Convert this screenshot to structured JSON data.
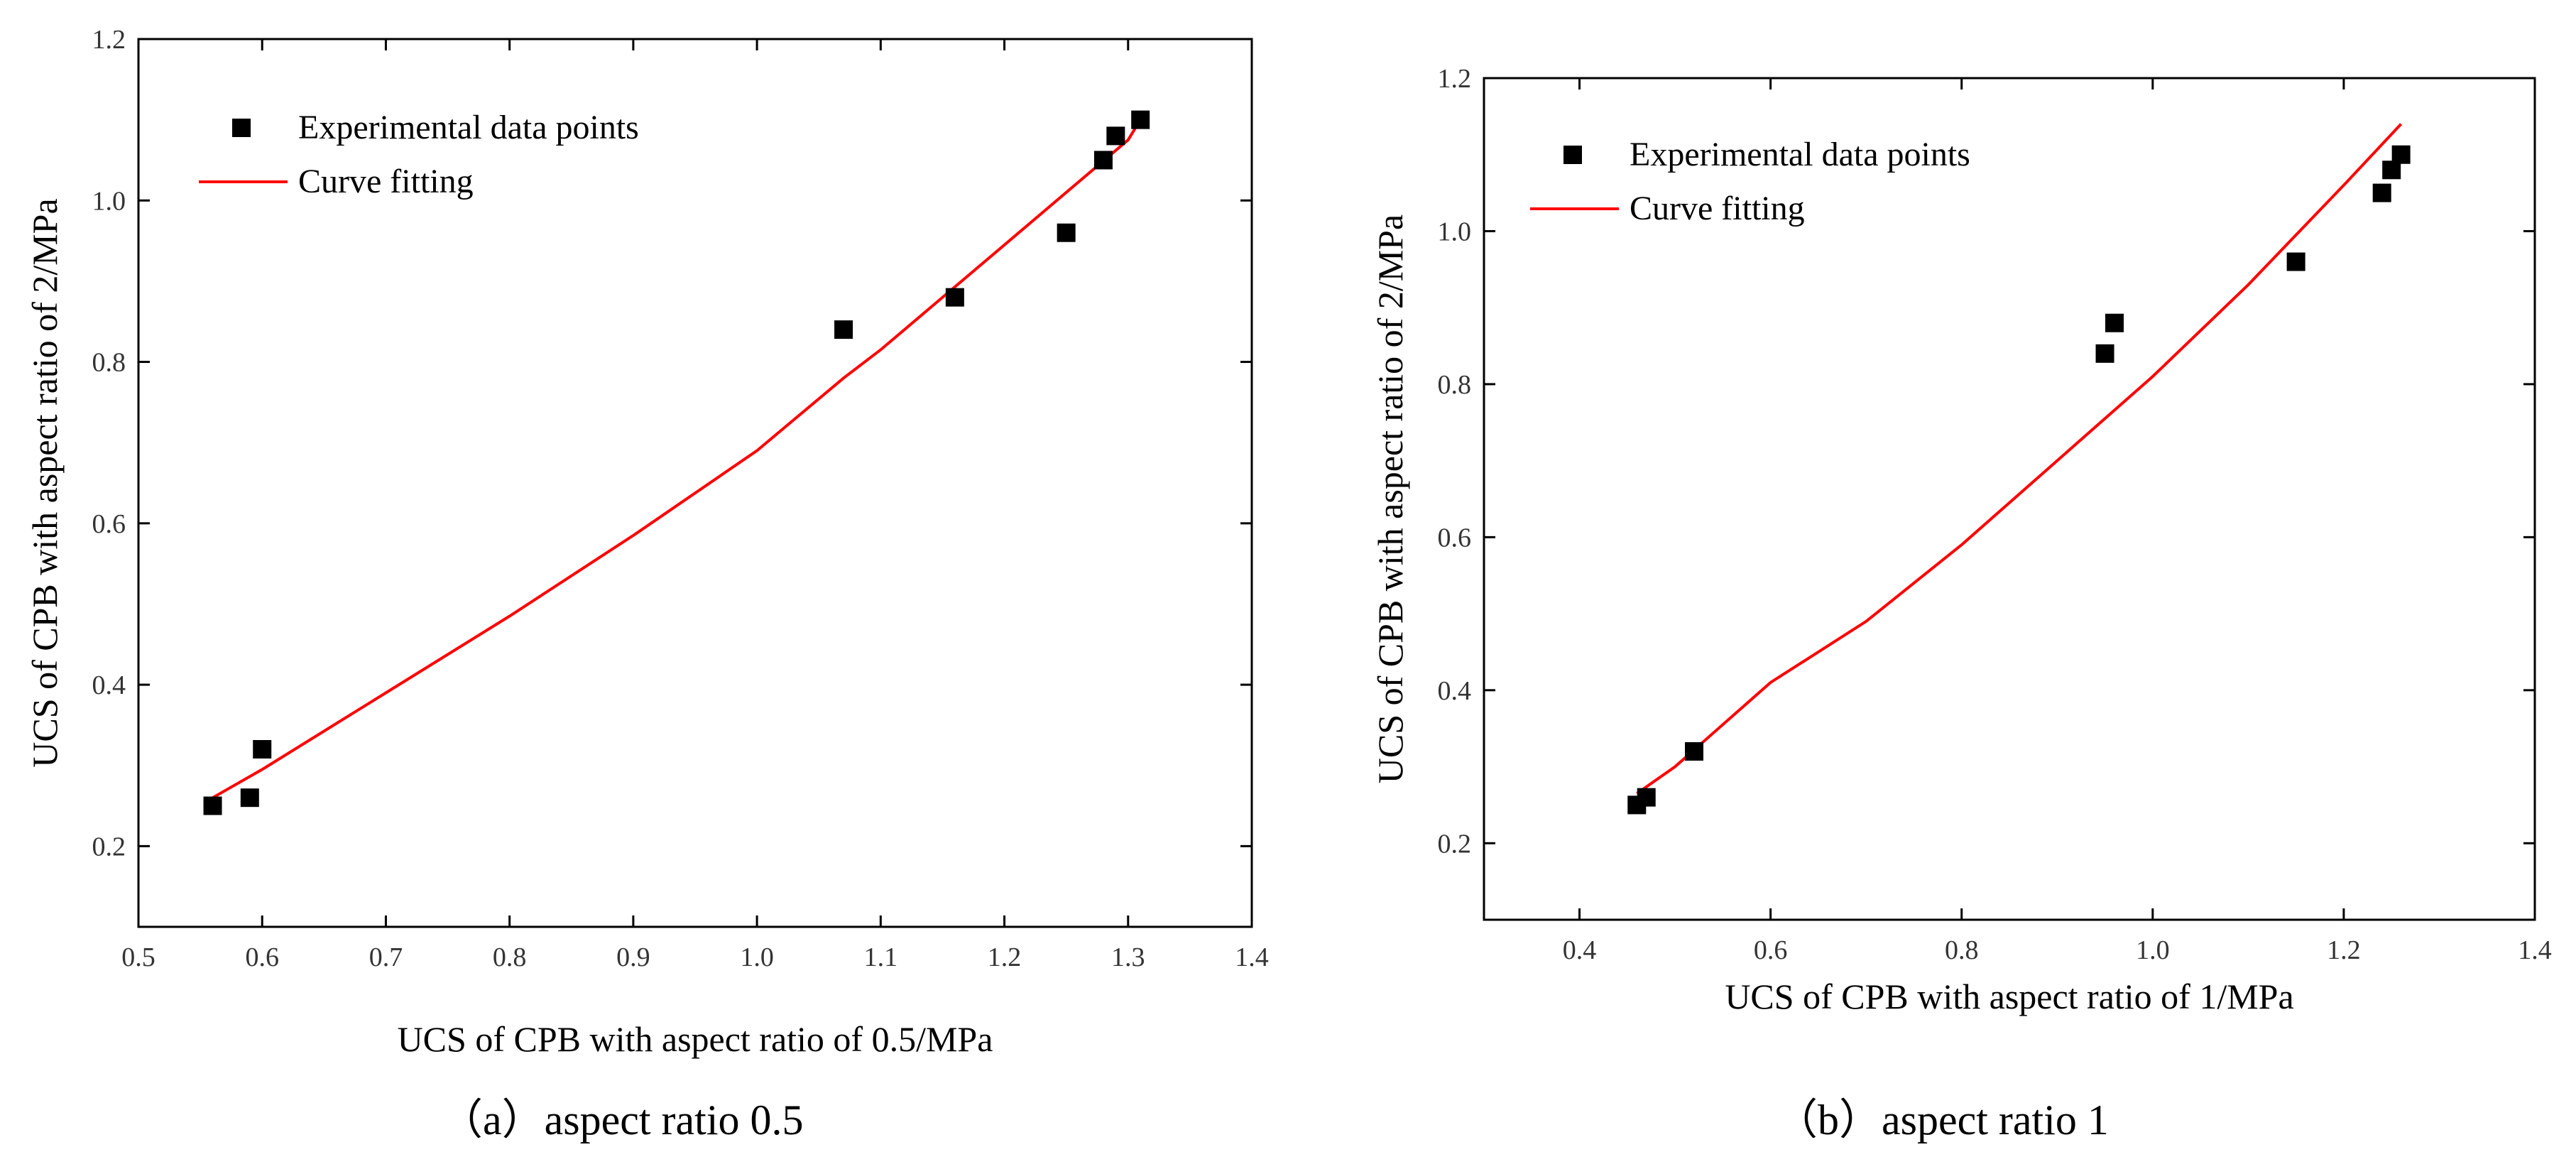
{
  "colors": {
    "points": "#000000",
    "curve": "#ff0000",
    "axis": "#000000"
  },
  "chart_data": [
    {
      "type": "scatter",
      "xlabel": "UCS of CPB with aspect ratio of 0.5/MPa",
      "ylabel": "UCS of CPB with aspect ratio of 2/MPa",
      "xlim": [
        0.5,
        1.4
      ],
      "ylim": [
        0.1,
        1.2
      ],
      "xticks": [
        0.5,
        0.6,
        0.7,
        0.8,
        0.9,
        1.0,
        1.1,
        1.2,
        1.3,
        1.4
      ],
      "xtick_labels": [
        "0.5",
        "0.6",
        "0.7",
        "0.8",
        "0.9",
        "1.0",
        "1.1",
        "1.2",
        "1.3",
        "1.4"
      ],
      "yticks": [
        0.2,
        0.4,
        0.6,
        0.8,
        1.0,
        1.2
      ],
      "ytick_labels": [
        "0.2",
        "0.4",
        "0.6",
        "0.8",
        "1.0",
        "1.2"
      ],
      "legend": {
        "points_label": "Experimental data points",
        "curve_label": "Curve fitting",
        "position": "top-left"
      },
      "series": [
        {
          "name": "Experimental data points",
          "x": [
            0.56,
            0.59,
            0.6,
            1.07,
            1.16,
            1.25,
            1.28,
            1.29,
            1.31
          ],
          "y": [
            0.25,
            0.26,
            0.32,
            0.84,
            0.88,
            0.96,
            1.05,
            1.08,
            1.1
          ]
        },
        {
          "name": "Curve fitting",
          "x": [
            0.56,
            0.6,
            0.7,
            0.8,
            0.9,
            1.0,
            1.07,
            1.1,
            1.2,
            1.3,
            1.31
          ],
          "y": [
            0.26,
            0.295,
            0.39,
            0.485,
            0.585,
            0.69,
            0.78,
            0.815,
            0.945,
            1.075,
            1.1
          ]
        }
      ],
      "caption": "（a）aspect ratio 0.5"
    },
    {
      "type": "scatter",
      "xlabel": "UCS of CPB with aspect ratio of 1/MPa",
      "ylabel": "UCS of CPB with aspect ratio of 2/MPa",
      "xlim": [
        0.3,
        1.4
      ],
      "ylim": [
        0.1,
        1.2
      ],
      "xticks": [
        0.4,
        0.6,
        0.8,
        1.0,
        1.2,
        1.4
      ],
      "xtick_labels": [
        "0.4",
        "0.6",
        "0.8",
        "1.0",
        "1.2",
        "1.4"
      ],
      "yticks": [
        0.2,
        0.4,
        0.6,
        0.8,
        1.0,
        1.2
      ],
      "ytick_labels": [
        "0.2",
        "0.4",
        "0.6",
        "0.8",
        "1.0",
        "1.2"
      ],
      "legend": {
        "points_label": "Experimental data points",
        "curve_label": "Curve fitting",
        "position": "top-left"
      },
      "series": [
        {
          "name": "Experimental data points",
          "x": [
            0.46,
            0.47,
            0.52,
            0.95,
            0.96,
            1.15,
            1.24,
            1.25,
            1.26
          ],
          "y": [
            0.25,
            0.26,
            0.32,
            0.84,
            0.88,
            0.96,
            1.05,
            1.08,
            1.1
          ]
        },
        {
          "name": "Curve fitting",
          "x": [
            0.46,
            0.5,
            0.6,
            0.7,
            0.8,
            0.9,
            1.0,
            1.1,
            1.2,
            1.26
          ],
          "y": [
            0.265,
            0.3,
            0.41,
            0.49,
            0.59,
            0.7,
            0.81,
            0.93,
            1.06,
            1.14
          ]
        }
      ],
      "caption": "（b）aspect ratio 1"
    }
  ]
}
